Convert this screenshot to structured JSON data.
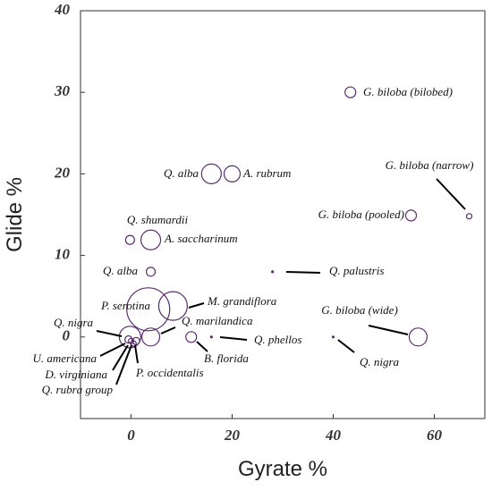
{
  "chart_data": {
    "type": "bubble",
    "x_label": "Gyrate %",
    "y_label": "Glide %",
    "labels": [
      "G. biloba (bilobed)",
      "Q. alba",
      "A. rubrum",
      "G. biloba (narrow)",
      "G. biloba (pooled)",
      "Q. shumardii",
      "A. saccharinum",
      "Q. alba",
      "Q. palustris",
      "P. serotina",
      "M. grandiflora",
      "Q. marilandica",
      "Q. nigra",
      "G. biloba (wide)",
      "Q. phellos",
      "B. florida",
      "Q. nigra",
      "U. americana",
      "D. virginiana",
      "Q. rubra group",
      "P. occidentalis"
    ],
    "x": [
      43.4,
      15.9,
      20,
      66.9,
      55.4,
      -0.2,
      3.9,
      3.9,
      28,
      3.4,
      8.3,
      3.9,
      -0.2,
      56.8,
      15.9,
      11.9,
      40,
      -0.5,
      0,
      0.5,
      1
    ],
    "values": [
      30,
      20,
      20,
      14.8,
      14.9,
      11.9,
      11.9,
      8,
      8,
      3.4,
      3.8,
      0,
      0,
      0,
      0,
      0,
      0,
      -0.3,
      -0.5,
      -0.8,
      -0.5
    ],
    "sizes": [
      6,
      11,
      9,
      3,
      6,
      5,
      11,
      5,
      1,
      24,
      16,
      10,
      12,
      10,
      1,
      6,
      1,
      4,
      3,
      3,
      4
    ],
    "color": "#5b2c6f",
    "xlim": [
      -10,
      70
    ],
    "ylim": [
      -10,
      40
    ],
    "xticks": [
      0,
      20,
      40,
      60
    ],
    "yticks": [
      0,
      10,
      20,
      30,
      40
    ]
  }
}
